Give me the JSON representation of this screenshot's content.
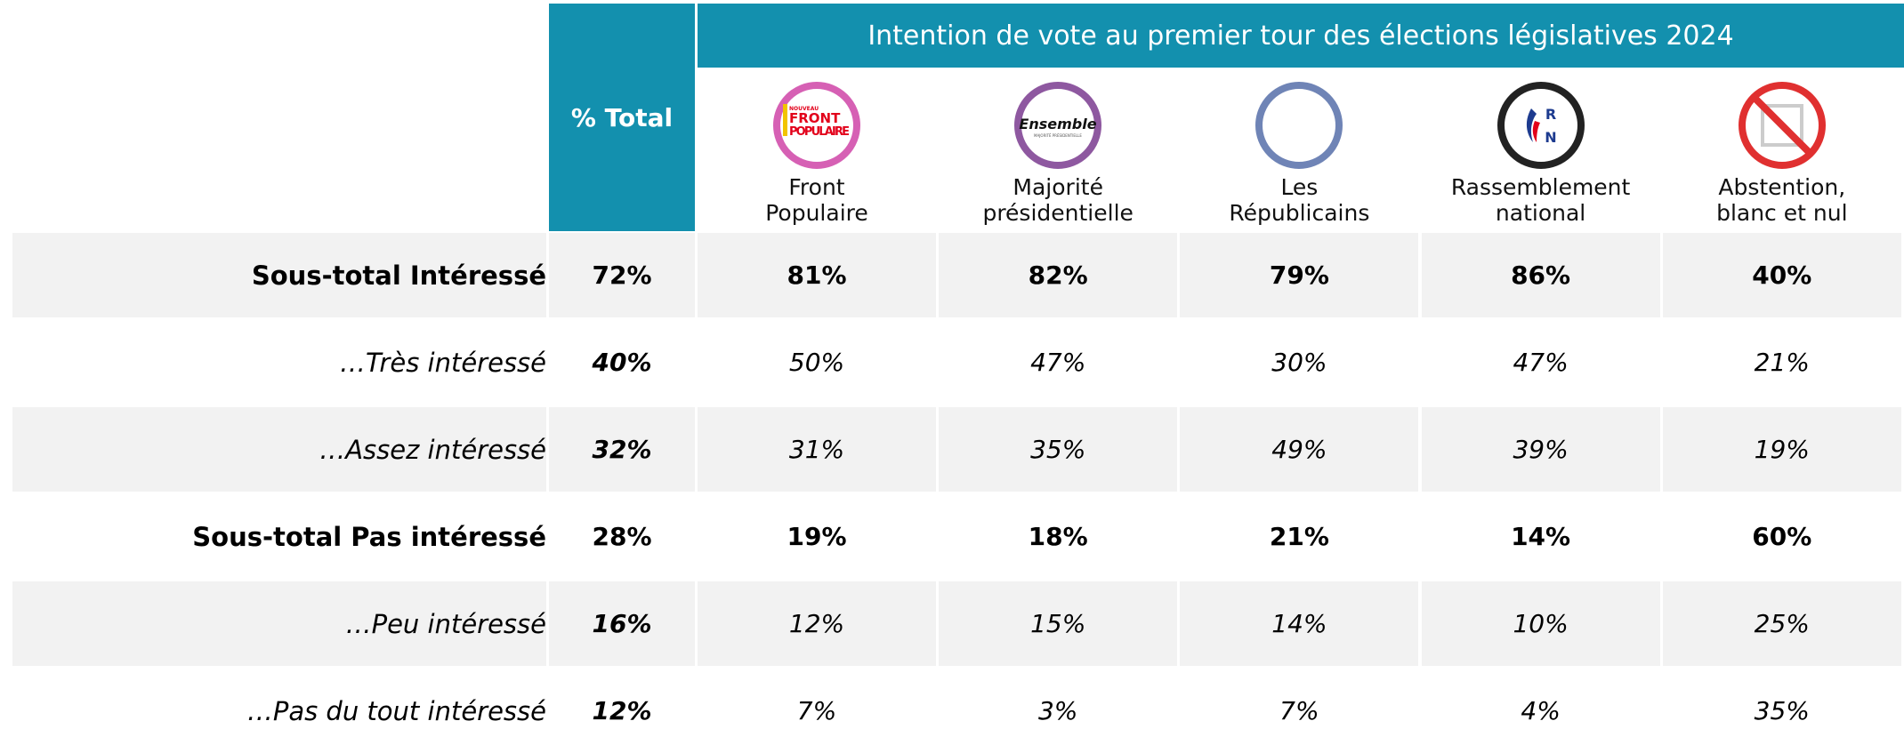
{
  "header": {
    "total": "% Total",
    "title": "Intention de vote au premier tour des élections législatives 2024"
  },
  "columns": [
    {
      "name": "Front\nPopulaire",
      "logo": [
        "NOUVEAU",
        "FRONT",
        "POPULAIRE"
      ]
    },
    {
      "name": "Majorité\nprésidentielle",
      "logo": [
        "Ensemble",
        "MAJORITÉ PRÉSIDENTIELLE"
      ]
    },
    {
      "name": "Les\nRépublicains"
    },
    {
      "name": "Rassemblement\nnational",
      "logo": [
        "R",
        "N"
      ]
    },
    {
      "name": "Abstention,\nblanc et nul"
    }
  ],
  "rows": [
    {
      "label": "Sous-total Intéressé",
      "kind": "subtotal",
      "cells": [
        "72%",
        "81%",
        "82%",
        "79%",
        "86%",
        "40%"
      ]
    },
    {
      "label": "…Très intéressé",
      "kind": "detail",
      "cells": [
        "40%",
        "50%",
        "47%",
        "30%",
        "47%",
        "21%"
      ]
    },
    {
      "label": "…Assez intéressé",
      "kind": "detail",
      "cells": [
        "32%",
        "31%",
        "35%",
        "49%",
        "39%",
        "19%"
      ]
    },
    {
      "label": "Sous-total Pas intéressé",
      "kind": "subtotal",
      "cells": [
        "28%",
        "19%",
        "18%",
        "21%",
        "14%",
        "60%"
      ]
    },
    {
      "label": "…Peu intéressé",
      "kind": "detail",
      "cells": [
        "16%",
        "12%",
        "15%",
        "14%",
        "10%",
        "25%"
      ]
    },
    {
      "label": "…Pas du tout intéressé",
      "kind": "detail",
      "cells": [
        "12%",
        "7%",
        "3%",
        "7%",
        "4%",
        "35%"
      ]
    }
  ]
}
